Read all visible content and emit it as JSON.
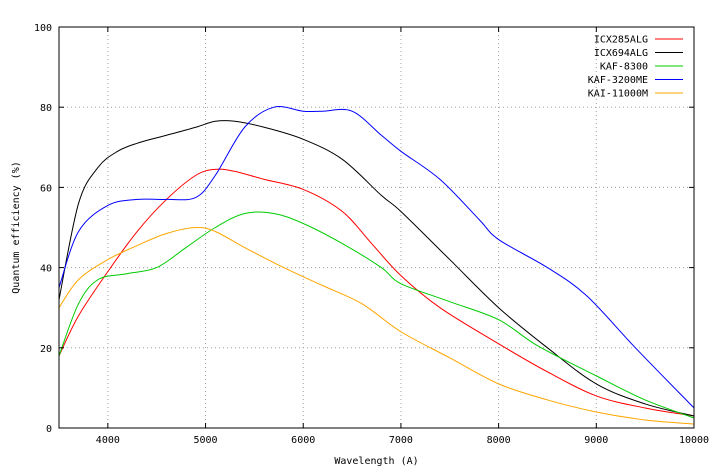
{
  "chart_data": {
    "type": "line",
    "title": "",
    "xlabel": "Wavelength (A)",
    "ylabel": "Quantum efficiency (%)",
    "xlim": [
      3500,
      10000
    ],
    "ylim": [
      0,
      100
    ],
    "xticks": [
      4000,
      5000,
      6000,
      7000,
      8000,
      9000,
      10000
    ],
    "yticks": [
      0,
      20,
      40,
      60,
      80,
      100
    ],
    "grid": true,
    "legend_position": "top-right",
    "series": [
      {
        "name": "ICX285ALG",
        "color": "#ff0000",
        "x": [
          3500,
          3700,
          4000,
          4300,
          4600,
          4900,
          5100,
          5300,
          5600,
          6000,
          6400,
          6700,
          7000,
          7400,
          8000,
          8500,
          9000,
          9500,
          10000
        ],
        "y": [
          18,
          28,
          39,
          49,
          57,
          63,
          64.5,
          64,
          62,
          59.5,
          54,
          46,
          38,
          30,
          21,
          14,
          8,
          5,
          3
        ]
      },
      {
        "name": "ICX694ALG",
        "color": "#000000",
        "x": [
          3500,
          3700,
          3900,
          4100,
          4300,
          4600,
          4900,
          5100,
          5300,
          5600,
          6000,
          6400,
          6800,
          7000,
          7500,
          8000,
          8500,
          9000,
          9500,
          10000
        ],
        "y": [
          32,
          56,
          65,
          69,
          71,
          73,
          75,
          76.5,
          76.5,
          75,
          72,
          67,
          58,
          54,
          42,
          30,
          20,
          11,
          6,
          3
        ]
      },
      {
        "name": "KAF-8300",
        "color": "#00cc00",
        "x": [
          3500,
          3700,
          3900,
          4200,
          4500,
          4800,
          5100,
          5400,
          5700,
          6000,
          6400,
          6800,
          7000,
          7500,
          8000,
          8400,
          9000,
          9500,
          10000
        ],
        "y": [
          18,
          31,
          37,
          38.5,
          40,
          45,
          50,
          53.5,
          53.5,
          51,
          46,
          40,
          36,
          31.5,
          27,
          20.5,
          13,
          7,
          2.5
        ]
      },
      {
        "name": "KAF-3200ME",
        "color": "#0000ff",
        "x": [
          3500,
          3700,
          4000,
          4300,
          4600,
          4900,
          5100,
          5400,
          5700,
          6000,
          6200,
          6500,
          6800,
          7000,
          7400,
          7800,
          8000,
          8500,
          8900,
          9400,
          10000
        ],
        "y": [
          35,
          49,
          55.5,
          57,
          57,
          57.5,
          63,
          75,
          80,
          79,
          79,
          79,
          73,
          69,
          62,
          52,
          47,
          40,
          33,
          20,
          5
        ]
      },
      {
        "name": "KAI-11000M",
        "color": "#ffa500",
        "x": [
          3500,
          3700,
          4000,
          4300,
          4600,
          4900,
          5100,
          5400,
          5800,
          6200,
          6600,
          7000,
          7500,
          8000,
          8500,
          9000,
          9500,
          10000
        ],
        "y": [
          30,
          37,
          42,
          45.5,
          48.5,
          50,
          49,
          45,
          40,
          35.5,
          31,
          24,
          17.5,
          11,
          7,
          4,
          2,
          1
        ]
      }
    ]
  }
}
